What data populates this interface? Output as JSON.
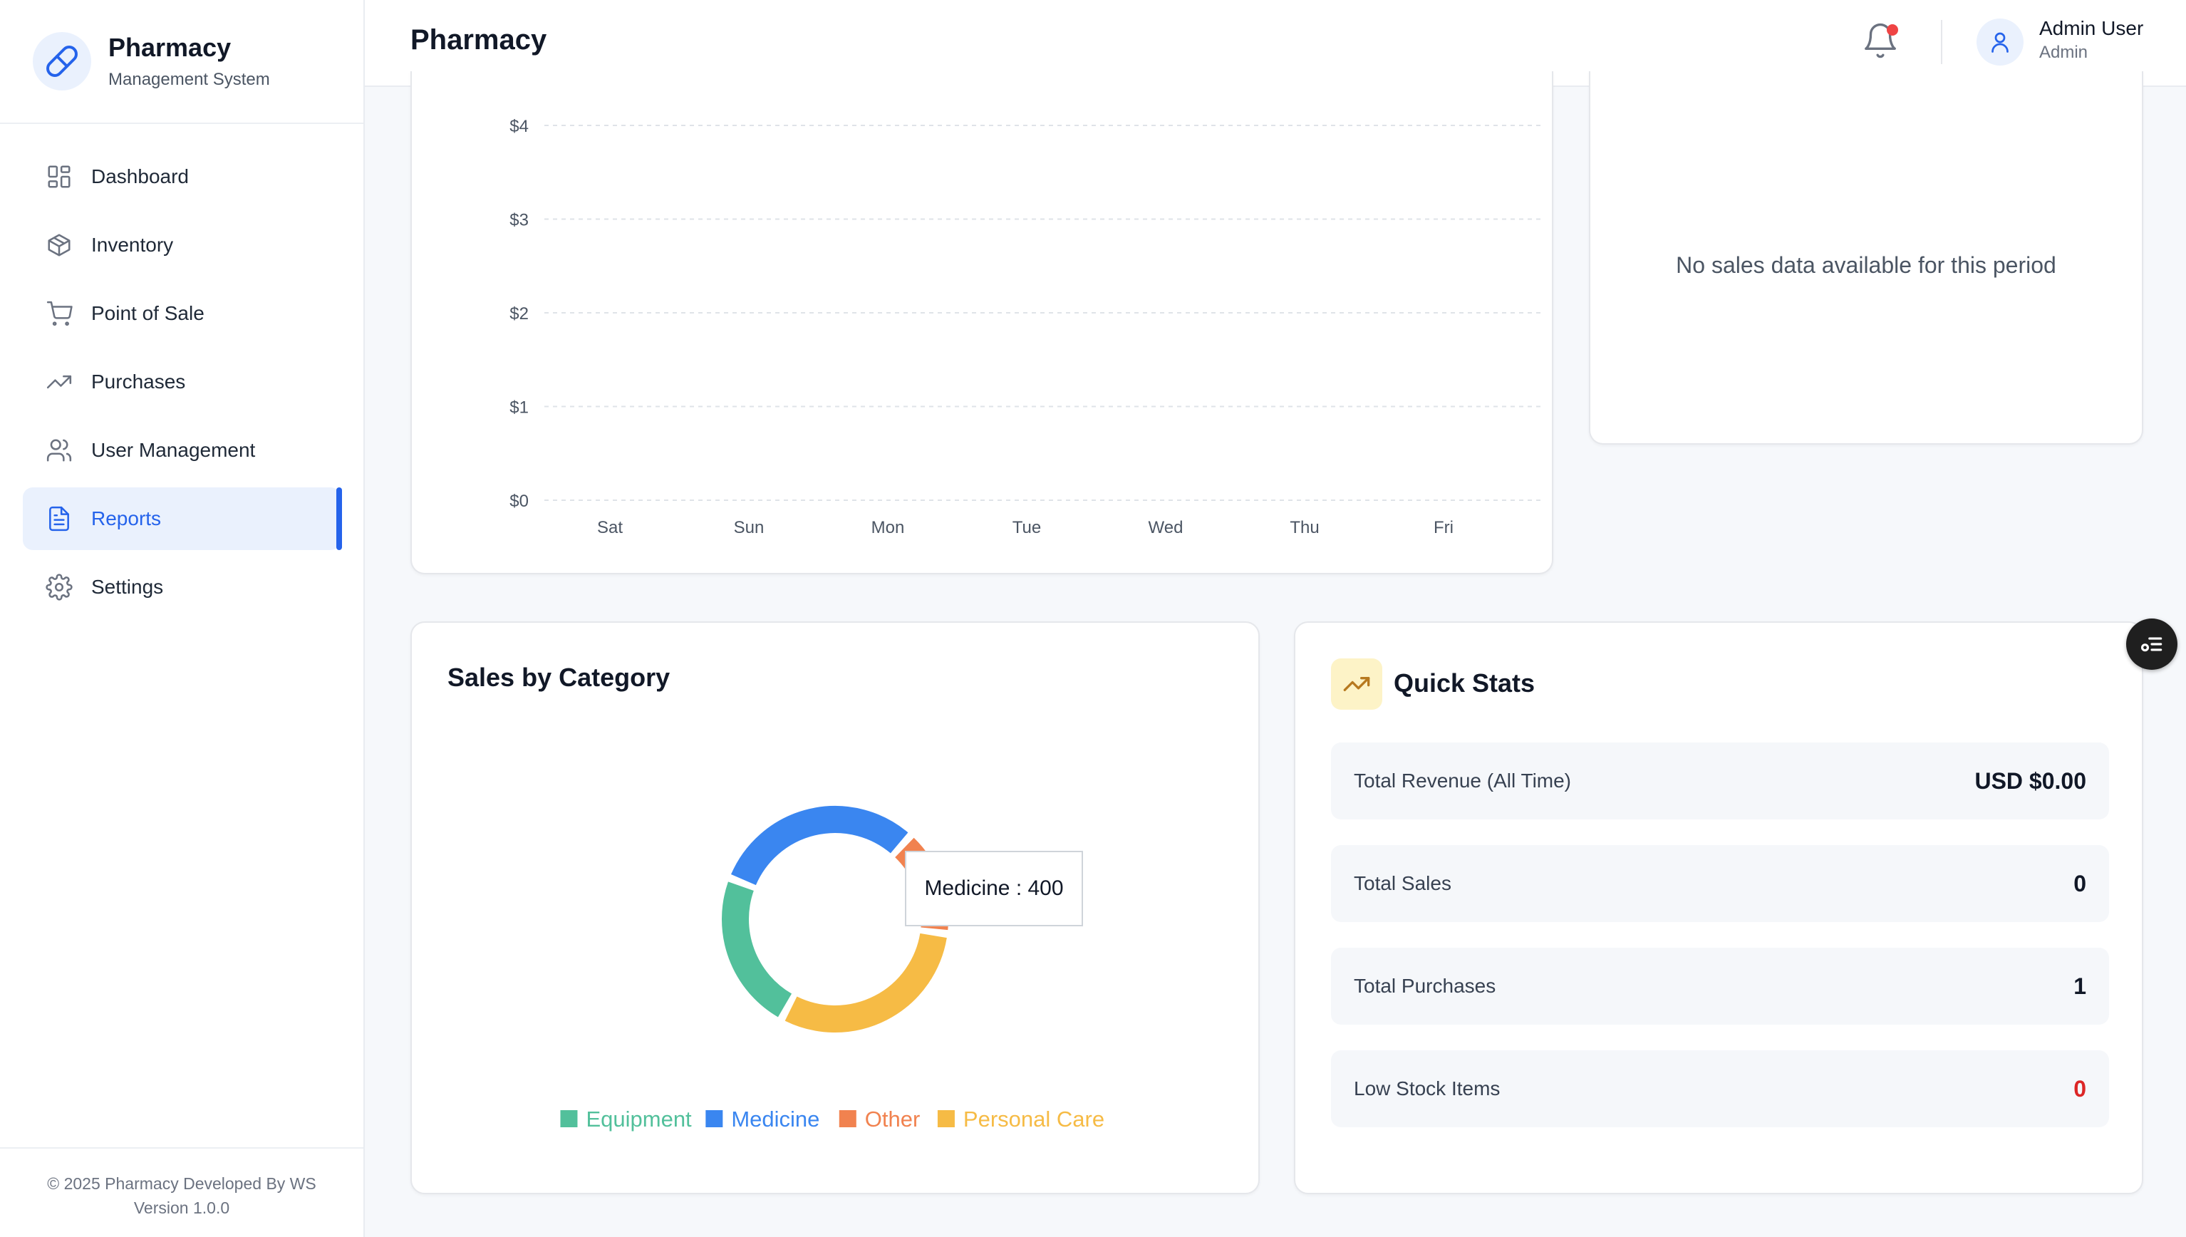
{
  "brand": {
    "title": "Pharmacy",
    "subtitle": "Management System",
    "accent": "#2563eb"
  },
  "sidebar": {
    "items": [
      {
        "label": "Dashboard",
        "icon": "dashboard-icon"
      },
      {
        "label": "Inventory",
        "icon": "box-icon"
      },
      {
        "label": "Point of Sale",
        "icon": "cart-icon"
      },
      {
        "label": "Purchases",
        "icon": "trending-up-icon"
      },
      {
        "label": "User Management",
        "icon": "users-icon"
      },
      {
        "label": "Reports",
        "icon": "document-icon",
        "active": true
      },
      {
        "label": "Settings",
        "icon": "gear-icon"
      }
    ],
    "footer_line1": "© 2025 Pharmacy Developed By WS",
    "footer_line2": "Version 1.0.0"
  },
  "header": {
    "title": "Pharmacy",
    "user_name": "Admin User",
    "user_role": "Admin",
    "notification_dot_color": "#ef4444"
  },
  "empty_panel": {
    "message": "No sales data available for this period"
  },
  "sales_by_category": {
    "title": "Sales by Category"
  },
  "quick_stats": {
    "title": "Quick Stats",
    "rows": [
      {
        "label": "Total Revenue (All Time)",
        "value": "USD $0.00"
      },
      {
        "label": "Total Sales",
        "value": "0"
      },
      {
        "label": "Total Purchases",
        "value": "1"
      },
      {
        "label": "Low Stock Items",
        "value": "0",
        "status": "danger"
      }
    ]
  },
  "chart_data": [
    {
      "type": "line",
      "title": "",
      "x": [
        "Sat",
        "Sun",
        "Mon",
        "Tue",
        "Wed",
        "Thu",
        "Fri"
      ],
      "yticks": [
        "$0",
        "$1",
        "$2",
        "$3",
        "$4"
      ],
      "ylim": [
        0,
        4
      ],
      "series": [],
      "grid": true
    },
    {
      "type": "pie",
      "style": "donut",
      "title": "Sales by Category",
      "categories": [
        "Equipment",
        "Medicine",
        "Other",
        "Personal Care"
      ],
      "values": [
        300,
        400,
        200,
        400
      ],
      "colors": [
        "#52c09b",
        "#3a86f0",
        "#f1824f",
        "#f6bb45"
      ],
      "tooltip": {
        "category": "Medicine",
        "value": 400,
        "text": "Medicine : 400"
      },
      "legend": "bottom"
    }
  ]
}
